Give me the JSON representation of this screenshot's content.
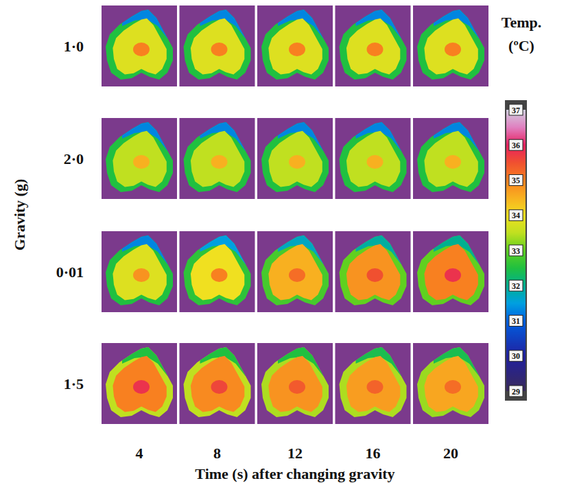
{
  "chart_data": {
    "type": "heatmap",
    "xlabel": "Time (s) after changing gravity",
    "ylabel": "Gravity (g)",
    "x": [
      4,
      8,
      12,
      16,
      20
    ],
    "xlim": [
      2,
      22
    ],
    "xticks": [
      4,
      8,
      12,
      16,
      20
    ],
    "row_labels": [
      "1·0",
      "2·0",
      "0·01",
      "1·5"
    ],
    "cells": [
      [
        {
          "top": 31.3,
          "rim": 32.5,
          "body": 33.8,
          "core": 35.0
        },
        {
          "top": 31.3,
          "rim": 32.5,
          "body": 33.8,
          "core": 35.0
        },
        {
          "top": 31.3,
          "rim": 32.5,
          "body": 33.8,
          "core": 35.0
        },
        {
          "top": 31.3,
          "rim": 32.5,
          "body": 33.8,
          "core": 35.0
        },
        {
          "top": 31.3,
          "rim": 32.5,
          "body": 33.8,
          "core": 35.0
        }
      ],
      [
        {
          "top": 31.3,
          "rim": 32.5,
          "body": 33.5,
          "core": 34.5
        },
        {
          "top": 31.3,
          "rim": 32.5,
          "body": 33.5,
          "core": 34.5
        },
        {
          "top": 31.3,
          "rim": 32.5,
          "body": 33.5,
          "core": 34.5
        },
        {
          "top": 31.3,
          "rim": 32.5,
          "body": 33.5,
          "core": 34.5
        },
        {
          "top": 31.3,
          "rim": 32.5,
          "body": 33.5,
          "core": 34.5
        }
      ],
      [
        {
          "top": 31.3,
          "rim": 32.5,
          "body": 33.8,
          "core": 34.8
        },
        {
          "top": 31.5,
          "rim": 32.6,
          "body": 34.0,
          "core": 35.0
        },
        {
          "top": 31.7,
          "rim": 32.8,
          "body": 34.5,
          "core": 35.2
        },
        {
          "top": 31.9,
          "rim": 33.0,
          "body": 34.8,
          "core": 35.5
        },
        {
          "top": 32.0,
          "rim": 33.0,
          "body": 35.0,
          "core": 35.8
        }
      ],
      [
        {
          "top": 32.5,
          "rim": 33.5,
          "body": 35.0,
          "core": 35.8
        },
        {
          "top": 32.5,
          "rim": 33.5,
          "body": 34.9,
          "core": 35.6
        },
        {
          "top": 32.5,
          "rim": 33.4,
          "body": 34.8,
          "core": 35.4
        },
        {
          "top": 32.4,
          "rim": 33.4,
          "body": 34.7,
          "core": 35.3
        },
        {
          "top": 32.4,
          "rim": 33.3,
          "body": 34.6,
          "core": 35.2
        }
      ]
    ],
    "colorbar": {
      "title": "Temp. (ºC)",
      "range": [
        29,
        37
      ],
      "ticks": [
        29,
        30,
        31,
        32,
        33,
        34,
        35,
        36,
        37
      ]
    }
  }
}
